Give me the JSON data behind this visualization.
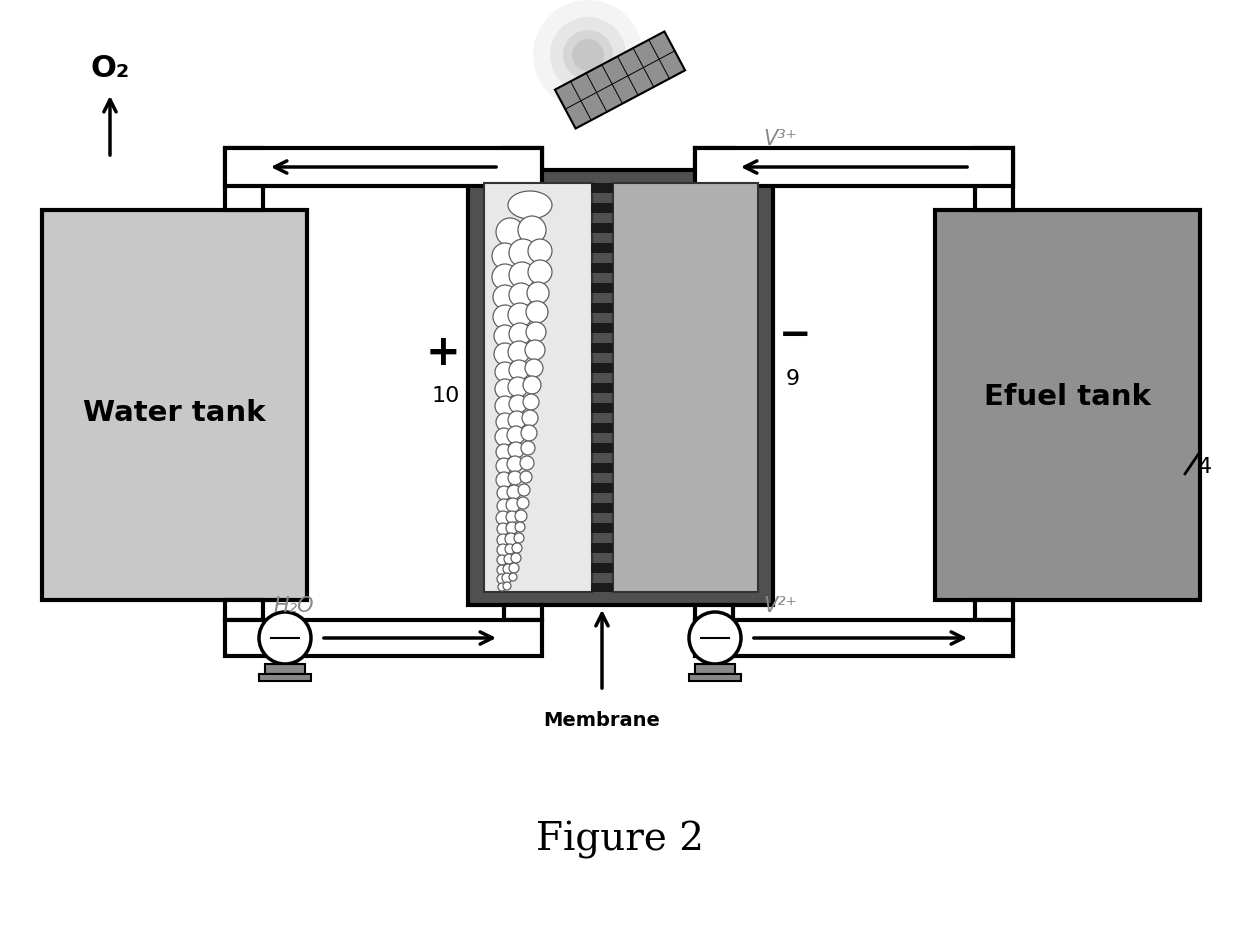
{
  "bg_color": "#ffffff",
  "water_tank_label": "Water tank",
  "efuel_tank_label": "Efuel tank",
  "o2_label": "O₂",
  "h2o_label": "H₂O",
  "v3_label": "V³⁺",
  "v2_label": "V²⁺",
  "membrane_label": "Membrane",
  "plus_label": "+",
  "minus_label": "−",
  "num_10": "10",
  "num_9": "9",
  "num_4": "4",
  "fig_caption": "Figure 2",
  "tank_light_color": "#c8c8c8",
  "tank_dark_color": "#909090",
  "cell_outer_color": "#505050",
  "anode_color": "#e8e8e8",
  "cath_color": "#b0b0b0",
  "pipe_color": "#ffffff",
  "pipe_lw": 3.0,
  "tank_lw": 3.0
}
